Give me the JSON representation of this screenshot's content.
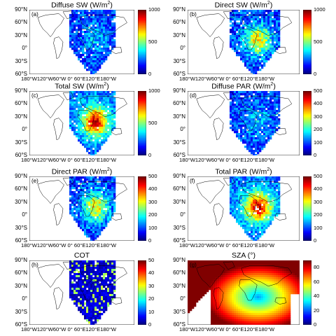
{
  "chart_data": [
    {
      "type": "heatmap",
      "panel": "(a)",
      "title": "Diffuse SW (W/m",
      "title_sup": "2",
      "title_end": ")",
      "colorbar": {
        "range": [
          0,
          1000
        ],
        "ticks": [
          "0",
          "500",
          "1000"
        ]
      },
      "pattern": "diffuse"
    },
    {
      "type": "heatmap",
      "panel": "(b)",
      "title": "Direct SW (W/m",
      "title_sup": "2",
      "title_end": ")",
      "colorbar": {
        "range": [
          0,
          1000
        ],
        "ticks": [
          "0",
          "500",
          "1000"
        ]
      },
      "pattern": "direct"
    },
    {
      "type": "heatmap",
      "panel": "(c)",
      "title": "Total SW (W/m",
      "title_sup": "2",
      "title_end": ")",
      "colorbar": {
        "range": [
          0,
          1000
        ],
        "ticks": [
          "0",
          "500",
          "1000"
        ]
      },
      "pattern": "total"
    },
    {
      "type": "heatmap",
      "panel": "(d)",
      "title": "Diffuse PAR (W/m",
      "title_sup": "2",
      "title_end": ")",
      "colorbar": {
        "range": [
          0,
          500
        ],
        "ticks": [
          "0",
          "100",
          "200",
          "300",
          "400",
          "500"
        ]
      },
      "pattern": "diffuse"
    },
    {
      "type": "heatmap",
      "panel": "(e)",
      "title": "Direct PAR (W/m",
      "title_sup": "2",
      "title_end": ")",
      "colorbar": {
        "range": [
          0,
          500
        ],
        "ticks": [
          "0",
          "100",
          "200",
          "300",
          "400",
          "500"
        ]
      },
      "pattern": "direct"
    },
    {
      "type": "heatmap",
      "panel": "(f)",
      "title": "Total PAR (W/m",
      "title_sup": "2",
      "title_end": ")",
      "colorbar": {
        "range": [
          0,
          500
        ],
        "ticks": [
          "0",
          "100",
          "200",
          "300",
          "400",
          "500"
        ]
      },
      "pattern": "total"
    },
    {
      "type": "heatmap",
      "panel": "(h)",
      "title": "COT",
      "title_sup": "",
      "title_end": "",
      "colorbar": {
        "range": [
          0,
          50
        ],
        "ticks": [
          "0",
          "10",
          "20",
          "30",
          "40",
          "50"
        ]
      },
      "pattern": "cot"
    },
    {
      "type": "heatmap",
      "panel": "(g)",
      "title": "SZA (°)",
      "title_sup": "",
      "title_end": "",
      "colorbar": {
        "range": [
          0,
          90
        ],
        "ticks": [
          "0",
          "20",
          "40",
          "60",
          "80"
        ]
      },
      "pattern": "sza"
    }
  ],
  "axes": {
    "lat_ticks": [
      "90°N",
      "60°N",
      "30°N",
      "0°",
      "30°S",
      "60°S"
    ],
    "lon_ticks": [
      "180°W",
      "120°W",
      "60°W",
      "0°",
      "60°E",
      "120°E",
      "180°W"
    ],
    "lon_tick_text": "180°W120°W60°W  0°  60°E120°E180°W"
  },
  "colors": {
    "colormap": "jet",
    "background": "#ffffff",
    "coastline": "#000000"
  }
}
